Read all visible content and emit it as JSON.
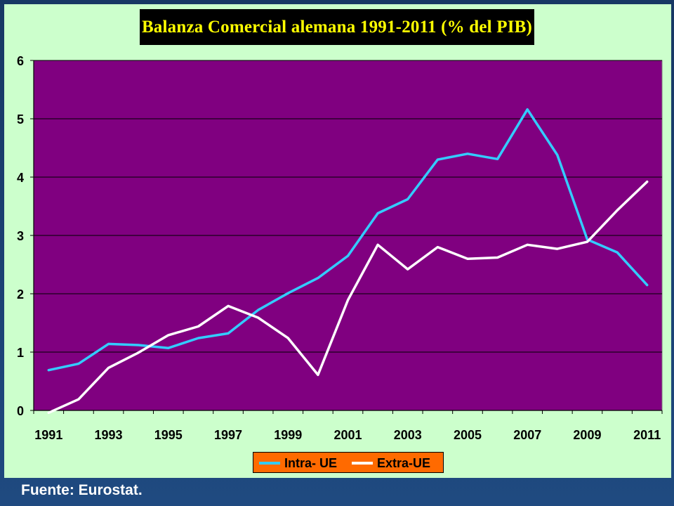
{
  "title": "Balanza Comercial alemana 1991-2011 (% del PIB)",
  "source": "Fuente: Eurostat.",
  "colors": {
    "plot_background": "#800080",
    "panel_background": "#ccffcc",
    "title_background": "#000000",
    "title_text": "#ffff00",
    "legend_background": "#ff6a00",
    "intra_ue": "#33ccff",
    "extra_ue": "#ffffff",
    "gridline": "#000000"
  },
  "chart_data": {
    "type": "line",
    "title": "Balanza Comercial alemana 1991-2011 (% del PIB)",
    "xlabel": "",
    "ylabel": "",
    "x": [
      1991,
      1992,
      1993,
      1994,
      1995,
      1996,
      1997,
      1998,
      1999,
      2000,
      2001,
      2002,
      2003,
      2004,
      2005,
      2006,
      2007,
      2008,
      2009,
      2010,
      2011
    ],
    "x_tick_labels": [
      "1991",
      "1993",
      "1995",
      "1997",
      "1999",
      "2001",
      "2003",
      "2005",
      "2007",
      "2009",
      "2011"
    ],
    "y_ticks": [
      0,
      1,
      2,
      3,
      4,
      5,
      6
    ],
    "ylim": [
      0,
      6
    ],
    "grid": "horizontal",
    "legend_position": "bottom",
    "series": [
      {
        "name": "Intra- UE",
        "color": "#33ccff",
        "values": [
          0.69,
          0.8,
          1.14,
          1.12,
          1.07,
          1.24,
          1.32,
          1.72,
          2.01,
          2.27,
          2.65,
          3.38,
          3.62,
          4.3,
          4.4,
          4.31,
          5.16,
          4.38,
          2.93,
          2.71,
          2.15
        ]
      },
      {
        "name": "Extra-UE",
        "color": "#ffffff",
        "values": [
          -0.04,
          0.19,
          0.73,
          0.99,
          1.29,
          1.44,
          1.79,
          1.59,
          1.24,
          0.61,
          1.89,
          2.84,
          2.42,
          2.8,
          2.6,
          2.62,
          2.84,
          2.77,
          2.89,
          3.43,
          3.92
        ]
      }
    ]
  }
}
